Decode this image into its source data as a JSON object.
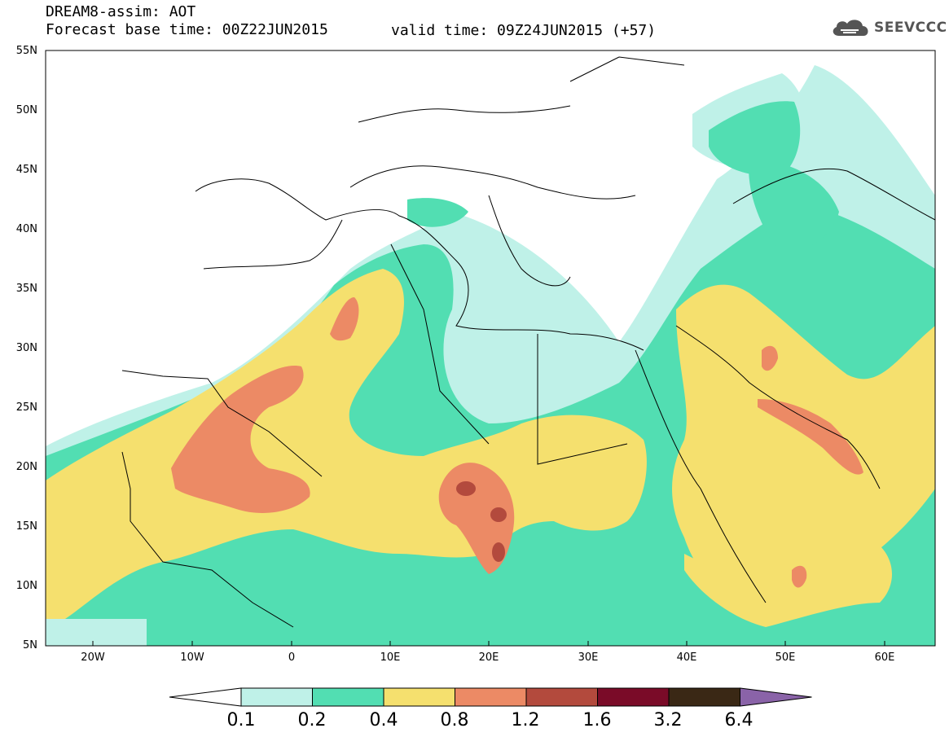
{
  "title": {
    "line1": "DREAM8-assim: AOT",
    "line2": "Forecast base time: 00Z22JUN2015",
    "valid": "valid time: 09Z24JUN2015 (+57)"
  },
  "logo": {
    "text": "SEEVCCC",
    "icon": "cloud-icon"
  },
  "map": {
    "projection": "lat-lon",
    "lon_range": [
      -25,
      65
    ],
    "lat_range": [
      5,
      55
    ],
    "lat_ticks": [
      "55N",
      "50N",
      "45N",
      "40N",
      "35N",
      "30N",
      "25N",
      "20N",
      "15N",
      "10N",
      "5N"
    ],
    "lon_ticks": [
      "20W",
      "10W",
      "0",
      "10E",
      "20E",
      "30E",
      "40E",
      "50E",
      "60E"
    ],
    "field": "AOT"
  },
  "colorbar": {
    "labels": [
      "0.1",
      "0.2",
      "0.4",
      "0.8",
      "1.2",
      "1.6",
      "3.2",
      "6.4"
    ],
    "colors": [
      "#ffffff",
      "#bff1e8",
      "#52deb2",
      "#f5e06e",
      "#ec8a65",
      "#b34a3d",
      "#7a0b28",
      "#3a2815",
      "#8a63a8"
    ]
  }
}
